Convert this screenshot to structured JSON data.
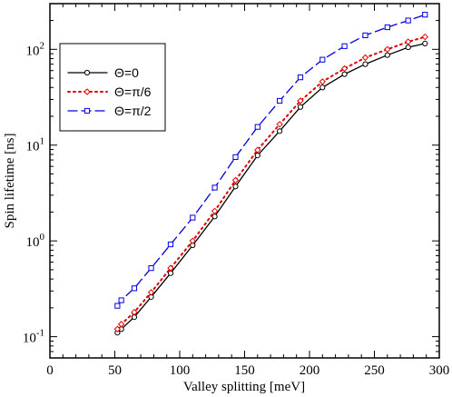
{
  "chart_data": {
    "type": "line",
    "xlabel": "Valley splitting [meV]",
    "ylabel": "Spin lifetime [ns]",
    "xlim": [
      0,
      300
    ],
    "ylim": [
      0.06,
      300
    ],
    "yscale": "log",
    "x_ticks": [
      0,
      50,
      100,
      150,
      200,
      250,
      300
    ],
    "y_ticks": [
      {
        "value": 0.1,
        "base": "10",
        "exp": "-1"
      },
      {
        "value": 1,
        "base": "10",
        "exp": "0"
      },
      {
        "value": 10,
        "base": "10",
        "exp": "1"
      },
      {
        "value": 100,
        "base": "10",
        "exp": "2"
      }
    ],
    "grid": false,
    "legend_position": "top-left",
    "series": [
      {
        "name": "Θ=0",
        "color": "#000000",
        "dash": "solid",
        "marker": "circle",
        "x": [
          52,
          55,
          65,
          78,
          93,
          110,
          127,
          143,
          160,
          177,
          193,
          210,
          227,
          243,
          260,
          276,
          289
        ],
        "y": [
          0.11,
          0.12,
          0.16,
          0.26,
          0.46,
          0.9,
          1.8,
          3.7,
          7.8,
          14.0,
          25.0,
          40.0,
          55.0,
          70.0,
          87.0,
          105.0,
          115.0
        ]
      },
      {
        "name": "Θ=π/6",
        "color": "#e00000",
        "dash": "dotted",
        "marker": "diamond",
        "x": [
          52,
          55,
          65,
          78,
          93,
          110,
          127,
          143,
          160,
          177,
          193,
          210,
          227,
          243,
          260,
          276,
          289
        ],
        "y": [
          0.12,
          0.135,
          0.18,
          0.29,
          0.52,
          1.0,
          2.05,
          4.3,
          8.9,
          16.5,
          29.0,
          46.0,
          63.0,
          82.0,
          100.0,
          120.0,
          135.0
        ]
      },
      {
        "name": "Θ=π/2",
        "color": "#0000dd",
        "dash": "dashed",
        "marker": "square",
        "x": [
          52,
          55,
          65,
          78,
          93,
          110,
          127,
          143,
          160,
          177,
          193,
          210,
          227,
          243,
          260,
          276,
          289
        ],
        "y": [
          0.21,
          0.24,
          0.32,
          0.52,
          0.92,
          1.75,
          3.6,
          7.5,
          15.5,
          29.0,
          51.0,
          78.0,
          108.0,
          140.0,
          170.0,
          200.0,
          230.0
        ]
      }
    ]
  }
}
